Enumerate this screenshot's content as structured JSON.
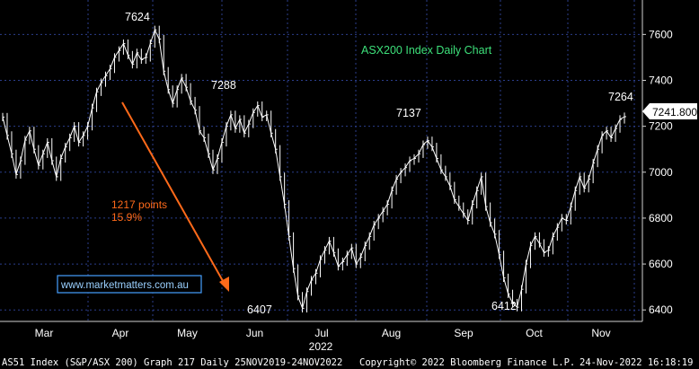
{
  "chart_data": {
    "type": "line",
    "title": "ASX200 Index Daily Chart",
    "ylim": [
      6350,
      7750
    ],
    "y_ticks": [
      6400,
      6600,
      6800,
      7000,
      7200,
      7400,
      7600
    ],
    "x_ticks": [
      "Mar",
      "Apr",
      "May",
      "Jun",
      "Jul",
      "Aug",
      "Sep",
      "Oct",
      "Nov"
    ],
    "year_label": "2022",
    "last_value": "7241.800",
    "grid": true,
    "series": [
      {
        "values": [
          7240,
          7160,
          7080,
          6990,
          7050,
          7140,
          7180,
          7100,
          7030,
          7080,
          7130,
          7050,
          6980,
          7060,
          7110,
          7150,
          7200,
          7130,
          7160,
          7200,
          7280,
          7350,
          7390,
          7420,
          7450,
          7500,
          7530,
          7560,
          7510,
          7470,
          7520,
          7490,
          7500,
          7560,
          7620,
          7580,
          7440,
          7360,
          7300,
          7360,
          7410,
          7370,
          7310,
          7270,
          7180,
          7150,
          7080,
          7010,
          7060,
          7130,
          7200,
          7250,
          7190,
          7230,
          7170,
          7210,
          7260,
          7290,
          7240,
          7250,
          7170,
          7100,
          6980,
          6860,
          6720,
          6580,
          6460,
          6407,
          6480,
          6530,
          6560,
          6620,
          6660,
          6700,
          6650,
          6590,
          6610,
          6640,
          6670,
          6600,
          6630,
          6680,
          6720,
          6770,
          6800,
          6830,
          6860,
          6920,
          6970,
          7000,
          7020,
          7050,
          7060,
          7080,
          7120,
          7137,
          7110,
          7060,
          7010,
          6980,
          6940,
          6880,
          6850,
          6820,
          6790,
          6860,
          6920,
          6980,
          6850,
          6780,
          6730,
          6640,
          6540,
          6470,
          6430,
          6412,
          6490,
          6600,
          6680,
          6720,
          6690,
          6650,
          6660,
          6720,
          6760,
          6800,
          6790,
          6850,
          6920,
          6980,
          6930,
          6970,
          7040,
          7100,
          7160,
          7180,
          7150,
          7190,
          7230,
          7241.8
        ]
      }
    ],
    "annotations": {
      "peaks": [
        "7624",
        "7288",
        "6407",
        "7137",
        "6412",
        "7264"
      ],
      "drop_label_1": "1217 points",
      "drop_label_2": "15.9%"
    }
  },
  "watermark": "www.marketmatters.com.au",
  "footer": {
    "left": "AS51 Index (S&P/ASX 200) Graph 217  Daily 25NOV2019-24NOV2022",
    "center": "Copyright© 2022 Bloomberg Finance L.P.",
    "right": "24-Nov-2022 16:18:19"
  },
  "colors": {
    "background": "#000000",
    "price": "#ffffff",
    "grid": "#2b3e8c",
    "title": "#3de07a",
    "arrow": "#ff6a1a",
    "watermark_border": "#46a0ff"
  }
}
